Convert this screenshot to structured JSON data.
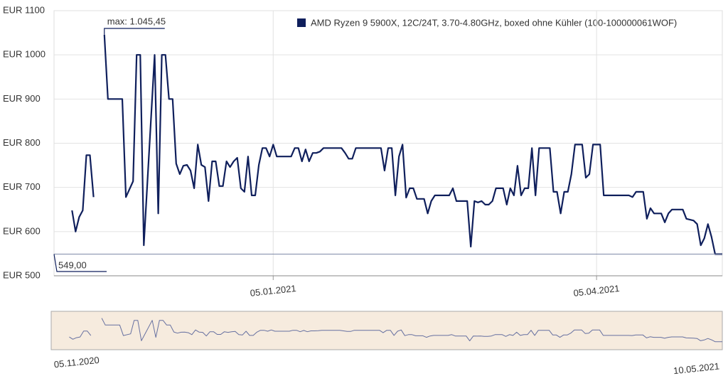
{
  "chart_data": {
    "type": "line",
    "xlim": [
      "05.11.2020",
      "10.05.2021"
    ],
    "xticks": [
      "05.01.2021",
      "05.04.2021"
    ],
    "ylim": [
      500,
      1100
    ],
    "yticks": [
      {
        "value": 500,
        "label": "EUR 500"
      },
      {
        "value": 600,
        "label": "EUR 600"
      },
      {
        "value": 700,
        "label": "EUR 700"
      },
      {
        "value": 800,
        "label": "EUR 800"
      },
      {
        "value": 900,
        "label": "EUR 900"
      },
      {
        "value": 1000,
        "label": "EUR 1000"
      },
      {
        "value": 1100,
        "label": "EUR 1100"
      }
    ],
    "grid": true,
    "legend": "top-right",
    "annotations": [
      {
        "text": "max: 1.045,45",
        "value": 1045.45
      },
      {
        "text": "549,00",
        "value": 549
      }
    ],
    "x": [
      "10.11.2020",
      "11.11.2020",
      "12.11.2020",
      "13.11.2020",
      "14.11.2020",
      "15.11.2020",
      "16.11.2020",
      "17.11.2020",
      "19.11.2020",
      "20.11.2020",
      "24.11.2020",
      "25.11.2020",
      "27.11.2020",
      "28.11.2020",
      "29.11.2020",
      "30.11.2020",
      "03.12.2020",
      "04.12.2020",
      "05.12.2020",
      "06.12.2020",
      "07.12.2020",
      "08.12.2020",
      "09.12.2020",
      "10.12.2020",
      "11.12.2020",
      "12.12.2020",
      "13.12.2020",
      "14.12.2020",
      "15.12.2020",
      "16.12.2020",
      "17.12.2020",
      "18.12.2020",
      "19.12.2020",
      "20.12.2020",
      "21.12.2020",
      "22.12.2020",
      "23.12.2020",
      "24.12.2020",
      "25.12.2020",
      "26.12.2020",
      "27.12.2020",
      "28.12.2020",
      "29.12.2020",
      "30.12.2020",
      "31.12.2020",
      "01.01.2021",
      "02.01.2021",
      "03.01.2021",
      "04.01.2021",
      "05.01.2021",
      "06.01.2021",
      "10.01.2021",
      "11.01.2021",
      "12.01.2021",
      "13.01.2021",
      "14.01.2021",
      "15.01.2021",
      "16.01.2021",
      "17.01.2021",
      "18.01.2021",
      "19.01.2021",
      "24.01.2021",
      "25.01.2021",
      "26.01.2021",
      "27.01.2021",
      "28.01.2021",
      "04.02.2021",
      "05.02.2021",
      "06.02.2021",
      "07.02.2021",
      "08.02.2021",
      "09.02.2021",
      "10.02.2021",
      "11.02.2021",
      "12.02.2021",
      "13.02.2021",
      "14.02.2021",
      "16.02.2021",
      "17.02.2021",
      "18.02.2021",
      "19.02.2021",
      "23.02.2021",
      "24.02.2021",
      "25.02.2021",
      "28.02.2021",
      "01.03.2021",
      "02.03.2021",
      "03.03.2021",
      "04.03.2021",
      "05.03.2021",
      "06.03.2021",
      "07.03.2021",
      "08.03.2021",
      "10.03.2021",
      "11.03.2021",
      "12.03.2021",
      "13.03.2021",
      "14.03.2021",
      "15.03.2021",
      "16.03.2021",
      "17.03.2021",
      "18.03.2021",
      "19.03.2021",
      "20.03.2021",
      "23.03.2021",
      "24.03.2021",
      "25.03.2021",
      "26.03.2021",
      "27.03.2021",
      "28.03.2021",
      "29.03.2021",
      "30.03.2021",
      "01.04.2021",
      "02.04.2021",
      "03.04.2021",
      "04.04.2021",
      "06.04.2021",
      "07.04.2021",
      "14.04.2021",
      "15.04.2021",
      "16.04.2021",
      "18.04.2021",
      "19.04.2021",
      "20.04.2021",
      "21.04.2021",
      "23.04.2021",
      "24.04.2021",
      "25.04.2021",
      "26.04.2021",
      "29.04.2021",
      "30.04.2021",
      "02.05.2021",
      "03.05.2021",
      "04.05.2021",
      "05.05.2021",
      "06.05.2021",
      "07.05.2021",
      "08.05.2021",
      "10.05.2021"
    ],
    "series": [
      {
        "name": "AMD Ryzen 9 5900X, 12C/24T, 3.70-4.80GHz, boxed ohne Kühler (100-100000061WOF)",
        "color": "#0f1f5c",
        "values": [
          648,
          600,
          633,
          648,
          773,
          773,
          678,
          null,
          1045.45,
          900,
          900,
          678,
          714,
          1000,
          1000,
          569,
          1000,
          641,
          1000,
          1000,
          900,
          900,
          754,
          730,
          749,
          751,
          738,
          698,
          797,
          751,
          746,
          669,
          759,
          759,
          703,
          703,
          759,
          746,
          759,
          767,
          698,
          690,
          770,
          682,
          682,
          751,
          789,
          789,
          770,
          797,
          770,
          770,
          789,
          789,
          759,
          786,
          759,
          778,
          778,
          781,
          789,
          789,
          778,
          765,
          765,
          789,
          789,
          738,
          789,
          789,
          682,
          770,
          797,
          677,
          698,
          698,
          674,
          674,
          641,
          669,
          682,
          682,
          698,
          669,
          669,
          566,
          669,
          666,
          669,
          661,
          661,
          669,
          698,
          698,
          661,
          698,
          682,
          749,
          682,
          698,
          698,
          789,
          682,
          789,
          789,
          690,
          690,
          641,
          690,
          690,
          730,
          797,
          797,
          722,
          730,
          797,
          797,
          682,
          682,
          678,
          690,
          690,
          629,
          653,
          641,
          641,
          621,
          641,
          650,
          650,
          629,
          625,
          617,
          569,
          585,
          617,
          588,
          549,
          549
        ]
      }
    ]
  }
}
